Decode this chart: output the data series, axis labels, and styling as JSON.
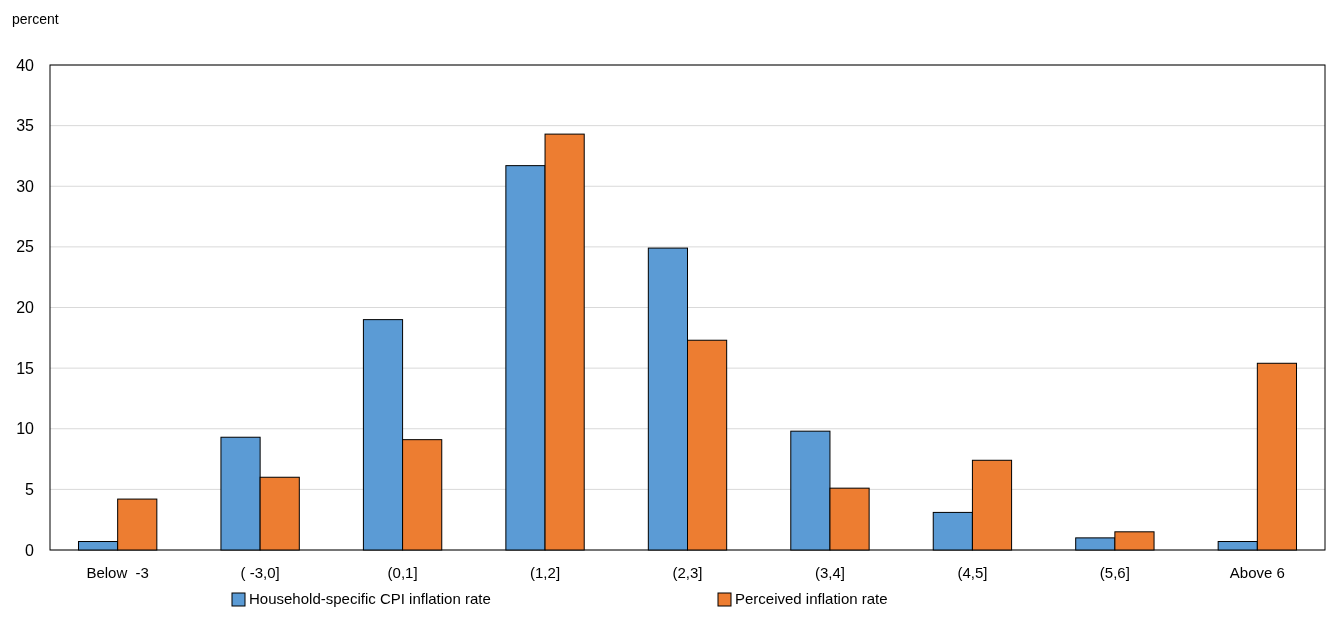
{
  "chart_data": {
    "type": "bar",
    "ylabel": "percent",
    "categories": [
      "Below  -3",
      "( -3,0]",
      "(0,1]",
      "(1,2]",
      "(2,3]",
      "(3,4]",
      "(4,5]",
      "(5,6]",
      "Above 6"
    ],
    "series": [
      {
        "name": "Household-specific CPI inflation rate",
        "color": "#5b9bd5",
        "values": [
          0.7,
          9.3,
          19.0,
          31.7,
          24.9,
          9.8,
          3.1,
          1.0,
          0.7
        ]
      },
      {
        "name": "Perceived inflation rate",
        "color": "#ed7d31",
        "values": [
          4.2,
          6.0,
          9.1,
          34.3,
          17.3,
          5.1,
          7.4,
          1.5,
          15.4
        ]
      }
    ],
    "ylim": [
      0,
      40
    ],
    "yticks": [
      0,
      5,
      10,
      15,
      20,
      25,
      30,
      35,
      40
    ],
    "grid": "y",
    "legend": "bottom"
  }
}
